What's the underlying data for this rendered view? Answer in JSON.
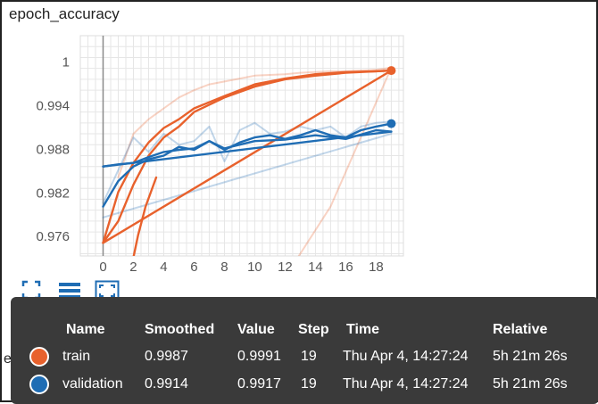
{
  "chart_data": {
    "type": "line",
    "title": "epoch_accuracy",
    "x_ticks": [
      0,
      2,
      4,
      6,
      8,
      10,
      12,
      14,
      16,
      18
    ],
    "y_ticks": [
      0.976,
      0.982,
      0.988,
      0.994,
      1
    ],
    "y_tick_labels": [
      "0.976",
      "0.982",
      "0.988",
      "0.994",
      "1"
    ],
    "xlim": [
      -1.5,
      19.8
    ],
    "ylim": [
      0.9732,
      1.0035
    ],
    "grid": true,
    "series": [
      {
        "name": "train",
        "color": "#e8612c",
        "smoothed_traces": [
          {
            "x": [
              0,
              1,
              2,
              3,
              4,
              5,
              6,
              8,
              10,
              12,
              14,
              16,
              18,
              19
            ],
            "y": [
              0.975,
              0.982,
              0.986,
              0.9888,
              0.9908,
              0.992,
              0.9935,
              0.9952,
              0.9968,
              0.9976,
              0.9982,
              0.9985,
              0.9986,
              0.9987
            ]
          },
          {
            "x": [
              0,
              1,
              2,
              3,
              4,
              5,
              6,
              8,
              10,
              12,
              14,
              16,
              18,
              19
            ],
            "y": [
              0.975,
              0.978,
              0.983,
              0.987,
              0.9895,
              0.991,
              0.993,
              0.995,
              0.9965,
              0.9975,
              0.998,
              0.9984,
              0.9986,
              0.9987
            ]
          },
          {
            "x": [
              0,
              19
            ],
            "y": [
              0.975,
              0.9987
            ]
          },
          {
            "x": [
              2,
              2.3,
              2.8,
              3.5
            ],
            "y": [
              0.973,
              0.976,
              0.98,
              0.984
            ]
          }
        ],
        "raw_traces": [
          {
            "x": [
              1,
              2,
              3,
              4,
              5,
              6,
              7,
              8,
              9,
              10,
              11,
              12,
              13,
              14,
              15,
              16,
              17,
              18,
              19
            ],
            "y": [
              0.984,
              0.99,
              0.992,
              0.9935,
              0.995,
              0.996,
              0.9968,
              0.9972,
              0.9976,
              0.998,
              0.9981,
              0.9982,
              0.9984,
              0.9985,
              0.9986,
              0.9986,
              0.9987,
              0.9988,
              0.9991
            ]
          },
          {
            "x": [
              11,
              15,
              19
            ],
            "y": [
              0.967,
              0.98,
              0.9991
            ]
          }
        ],
        "smoothed_last": 0.9987,
        "last_value": 0.9991,
        "last_step": 19
      },
      {
        "name": "validation",
        "color": "#1f6db4",
        "smoothed_traces": [
          {
            "x": [
              0,
              1,
              2,
              3,
              4,
              5,
              6,
              7,
              8,
              9,
              10,
              11,
              12,
              13,
              14,
              15,
              16,
              17,
              18,
              19
            ],
            "y": [
              0.9855,
              0.9858,
              0.986,
              0.9868,
              0.9875,
              0.9878,
              0.988,
              0.989,
              0.9878,
              0.9888,
              0.9895,
              0.9898,
              0.9893,
              0.9898,
              0.9905,
              0.9898,
              0.9895,
              0.9905,
              0.991,
              0.9914
            ]
          },
          {
            "x": [
              0,
              1,
              2,
              3,
              4,
              5,
              6,
              7,
              8,
              10,
              12,
              14,
              16,
              18,
              19
            ],
            "y": [
              0.98,
              0.9835,
              0.9855,
              0.9865,
              0.987,
              0.9882,
              0.9878,
              0.989,
              0.988,
              0.989,
              0.9892,
              0.9898,
              0.9893,
              0.9905,
              0.9903
            ]
          },
          {
            "x": [
              0,
              19
            ],
            "y": [
              0.9855,
              0.9903
            ]
          }
        ],
        "raw_traces": [
          {
            "x": [
              0,
              1,
              2,
              3,
              4,
              5,
              6,
              7,
              8,
              9,
              10,
              11,
              12,
              13,
              14,
              15,
              16,
              17,
              18,
              19
            ],
            "y": [
              0.9805,
              0.985,
              0.9895,
              0.9875,
              0.99,
              0.9885,
              0.989,
              0.991,
              0.9862,
              0.9905,
              0.9915,
              0.99,
              0.9903,
              0.991,
              0.9905,
              0.991,
              0.9895,
              0.991,
              0.9915,
              0.9917
            ]
          },
          {
            "x": [
              0,
              19
            ],
            "y": [
              0.9785,
              0.99
            ]
          }
        ],
        "smoothed_last": 0.9914,
        "last_value": 0.9917,
        "last_step": 19
      }
    ]
  },
  "toolbar": {
    "icons": [
      "fit-to-data-icon",
      "toggle-log-scale-icon",
      "fullscreen-icon"
    ]
  },
  "background_label": "epoch",
  "tooltip": {
    "headers": {
      "name": "Name",
      "smoothed": "Smoothed",
      "value": "Value",
      "step": "Step",
      "time": "Time",
      "relative": "Relative"
    },
    "rows": [
      {
        "color": "#e8612c",
        "name": "train",
        "smoothed": "0.9987",
        "value": "0.9991",
        "step": "19",
        "time": "Thu Apr 4, 14:27:24",
        "relative": "5h 21m 26s"
      },
      {
        "color": "#1f6db4",
        "name": "validation",
        "smoothed": "0.9914",
        "value": "0.9917",
        "step": "19",
        "time": "Thu Apr 4, 14:27:24",
        "relative": "5h 21m 26s"
      }
    ]
  }
}
